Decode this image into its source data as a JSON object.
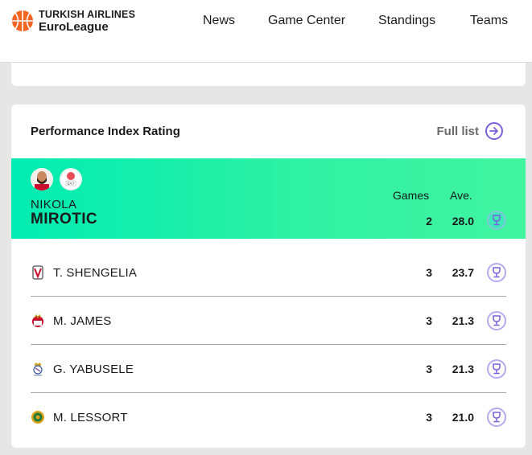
{
  "header": {
    "logo_top": "TURKISH AIRLINES",
    "logo_bottom": "EuroLeague",
    "nav": [
      "News",
      "Game Center",
      "Standings",
      "Teams"
    ]
  },
  "pir": {
    "title": "Performance Index Rating",
    "full_list_label": "Full list",
    "columns": {
      "games": "Games",
      "avg": "Ave."
    },
    "leader": {
      "first_name": "NIKOLA",
      "last_name": "MIROTIC",
      "games": "2",
      "avg": "28.0"
    },
    "rows": [
      {
        "name": "T. SHENGELIA",
        "games": "3",
        "avg": "23.7",
        "team_icon": "virtus-logo-icon"
      },
      {
        "name": "M. JAMES",
        "games": "3",
        "avg": "21.3",
        "team_icon": "monaco-logo-icon"
      },
      {
        "name": "G. YABUSELE",
        "games": "3",
        "avg": "21.3",
        "team_icon": "real-madrid-logo-icon"
      },
      {
        "name": "M. LESSORT",
        "games": "3",
        "avg": "21.0",
        "team_icon": "panathinaikos-logo-icon"
      }
    ]
  },
  "colors": {
    "accent": "#7b5fdc",
    "leader_bg": "#00ecb2",
    "brand_orange": "#f26522"
  }
}
